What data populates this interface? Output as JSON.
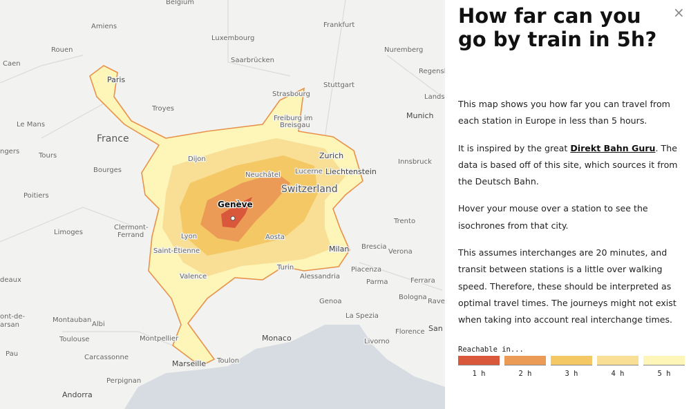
{
  "map": {
    "labels": [
      "Belgium",
      "Amiens",
      "Luxembourg",
      "Frankfurt",
      "Rouen",
      "Nuremberg",
      "Saarbrücken",
      "Caen",
      "Paris",
      "Stuttgart",
      "Regensb",
      "Strasbourg",
      "Landsh",
      "Troyes",
      "Freiburg im",
      "Breisgau",
      "Munich",
      "Le Mans",
      "France",
      "ngers",
      "Tours",
      "Dijon",
      "Zurich",
      "Innsbruck",
      "Bourges",
      "Neuchâtel",
      "Lucerne",
      "Liechtenstein",
      "Switzerland",
      "Poitiers",
      "Genève",
      "Trento",
      "Clermont-",
      "Ferrand",
      "Limoges",
      "Lyon",
      "Aosta",
      "Saint-Étienne",
      "Milan",
      "Brescia",
      "Verona",
      "Turin",
      "Valence",
      "Alessandria",
      "Piacenza",
      "Parma",
      "Ferrara",
      "deaux",
      "Bologna",
      "Raven",
      "Genoa",
      "ont-de-",
      "arsan",
      "Montauban",
      "Albi",
      "La Spezia",
      "Florence",
      "San",
      "Toulouse",
      "Montpellier",
      "Monaco",
      "Livorno",
      "Pau",
      "Carcassonne",
      "Marseille",
      "Toulon",
      "Perpignan",
      "Andorra"
    ]
  },
  "panel": {
    "close": "×",
    "title": "How far can you go by train in 5h?",
    "paragraphs": [
      [
        "This map shows you how far you can travel from each station in Europe in less than 5 hours."
      ],
      [
        "It is inspired by the great ",
        "Direkt Bahn Guru",
        ". The data is based off of this site, which sources it from the Deutsch Bahn."
      ],
      [
        "Hover your mouse over a station to see the isochrones from that city."
      ],
      [
        "This assumes interchanges are 20 minutes, and transit between stations is a little over walking speed. Therefore, these should be interpreted as optimal travel times. The journeys might not exist when taking into account real interchange times."
      ]
    ],
    "legend": {
      "title": "Reachable in...",
      "items": [
        {
          "label": "1 h",
          "color": "#d9583b"
        },
        {
          "label": "2 h",
          "color": "#eb9b55"
        },
        {
          "label": "3 h",
          "color": "#f3c865"
        },
        {
          "label": "4 h",
          "color": "#f8df95"
        },
        {
          "label": "5 h",
          "color": "#fdf6b8"
        }
      ]
    }
  }
}
